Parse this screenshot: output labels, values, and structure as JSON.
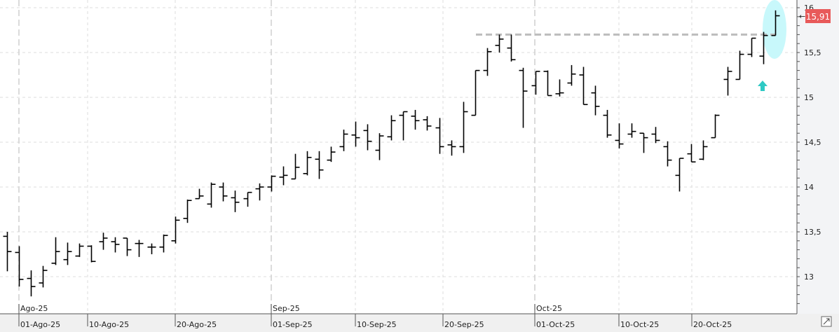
{
  "chart_data": {
    "type": "ohlc",
    "title": "",
    "ylim": [
      12.6,
      16.08
    ],
    "grid": true,
    "y_ticks": [
      "16",
      "15,5",
      "15",
      "14,5",
      "14",
      "13,5",
      "13"
    ],
    "y_tick_values": [
      16,
      15.5,
      15,
      14.5,
      14,
      13.5,
      13
    ],
    "x_ticks": [
      "01-Ago-25",
      "10-Ago-25",
      "20-Ago-25",
      "01-Sep-25",
      "10-Sep-25",
      "20-Sep-25",
      "01-Oct-25",
      "10-Oct-25",
      "20-Oct-25"
    ],
    "month_labels": [
      "Ago-25",
      "Sep-25",
      "Oct-25"
    ],
    "last_price_label": "15,91",
    "last_price": 15.91,
    "resistance_level": 15.7,
    "colors": {
      "bars": "#000000",
      "last_price_badge": "#e85a5a",
      "highlight_ellipse": "#c8f8fb",
      "arrow": "#2ec9c4",
      "resistance": "#bdbdbd"
    },
    "ohlc": [
      [
        13.45,
        13.5,
        13.06,
        13.28
      ],
      [
        13.27,
        13.34,
        12.89,
        12.97
      ],
      [
        12.98,
        13.07,
        12.78,
        12.89
      ],
      [
        12.93,
        13.12,
        12.88,
        13.07
      ],
      [
        13.15,
        13.44,
        13.13,
        13.28
      ],
      [
        13.19,
        13.38,
        13.13,
        13.28
      ],
      [
        13.23,
        13.37,
        13.22,
        13.34
      ],
      [
        13.34,
        13.35,
        13.16,
        13.17
      ],
      [
        13.39,
        13.49,
        13.3,
        13.43
      ],
      [
        13.39,
        13.44,
        13.27,
        13.36
      ],
      [
        13.43,
        13.43,
        13.23,
        13.3
      ],
      [
        13.37,
        13.41,
        13.22,
        13.37
      ],
      [
        13.33,
        13.37,
        13.25,
        13.33
      ],
      [
        13.33,
        13.47,
        13.27,
        13.46
      ],
      [
        13.4,
        13.67,
        13.37,
        13.63
      ],
      [
        13.65,
        13.86,
        13.6,
        13.85
      ],
      [
        13.87,
        13.98,
        13.87,
        13.9
      ],
      [
        13.81,
        14.05,
        13.77,
        14.03
      ],
      [
        14.0,
        14.05,
        13.84,
        13.9
      ],
      [
        13.88,
        13.96,
        13.72,
        13.83
      ],
      [
        13.87,
        13.94,
        13.78,
        13.94
      ],
      [
        13.98,
        14.04,
        13.85,
        14.0
      ],
      [
        14.0,
        14.13,
        13.95,
        14.12
      ],
      [
        14.11,
        14.23,
        14.02,
        14.13
      ],
      [
        14.09,
        14.37,
        14.09,
        14.22
      ],
      [
        14.15,
        14.4,
        14.13,
        14.33
      ],
      [
        14.31,
        14.4,
        14.09,
        14.19
      ],
      [
        14.3,
        14.45,
        14.28,
        14.39
      ],
      [
        14.45,
        14.64,
        14.4,
        14.59
      ],
      [
        14.58,
        14.73,
        14.45,
        14.55
      ],
      [
        14.63,
        14.7,
        14.41,
        14.51
      ],
      [
        14.41,
        14.6,
        14.3,
        14.57
      ],
      [
        14.56,
        14.8,
        14.52,
        14.74
      ],
      [
        14.8,
        14.84,
        14.52,
        14.84
      ],
      [
        14.79,
        14.86,
        14.64,
        14.74
      ],
      [
        14.75,
        14.79,
        14.63,
        14.68
      ],
      [
        14.66,
        14.77,
        14.37,
        14.45
      ],
      [
        14.47,
        14.52,
        14.35,
        14.45
      ],
      [
        14.45,
        14.95,
        14.38,
        14.84
      ],
      [
        14.8,
        15.3,
        14.8,
        15.3
      ],
      [
        15.3,
        15.55,
        15.24,
        15.51
      ],
      [
        15.58,
        15.7,
        15.5,
        15.65
      ],
      [
        15.55,
        15.7,
        15.4,
        15.42
      ],
      [
        15.3,
        15.33,
        14.66,
        15.07
      ],
      [
        15.13,
        15.29,
        15.03,
        15.29
      ],
      [
        15.29,
        15.3,
        15.02,
        15.02
      ],
      [
        15.04,
        15.2,
        15.01,
        15.05
      ],
      [
        15.16,
        15.36,
        15.13,
        15.26
      ],
      [
        15.25,
        15.34,
        14.92,
        14.92
      ],
      [
        15.05,
        15.13,
        14.8,
        14.9
      ],
      [
        14.8,
        14.86,
        14.55,
        14.58
      ],
      [
        14.52,
        14.71,
        14.43,
        14.48
      ],
      [
        14.59,
        14.71,
        14.55,
        14.62
      ],
      [
        14.6,
        14.6,
        14.38,
        14.55
      ],
      [
        14.59,
        14.67,
        14.49,
        14.52
      ],
      [
        14.45,
        14.51,
        14.23,
        14.3
      ],
      [
        14.13,
        14.32,
        13.95,
        14.32
      ],
      [
        14.37,
        14.48,
        14.28,
        14.28
      ],
      [
        14.31,
        14.52,
        14.3,
        14.45
      ],
      [
        14.55,
        14.81,
        14.55,
        14.8
      ],
      [
        15.2,
        15.34,
        15.02,
        15.29
      ],
      [
        15.2,
        15.52,
        15.2,
        15.48
      ],
      [
        15.48,
        15.66,
        15.45,
        15.66
      ],
      [
        15.46,
        15.73,
        15.37,
        15.69
      ],
      [
        15.69,
        15.97,
        15.69,
        15.91
      ]
    ]
  }
}
